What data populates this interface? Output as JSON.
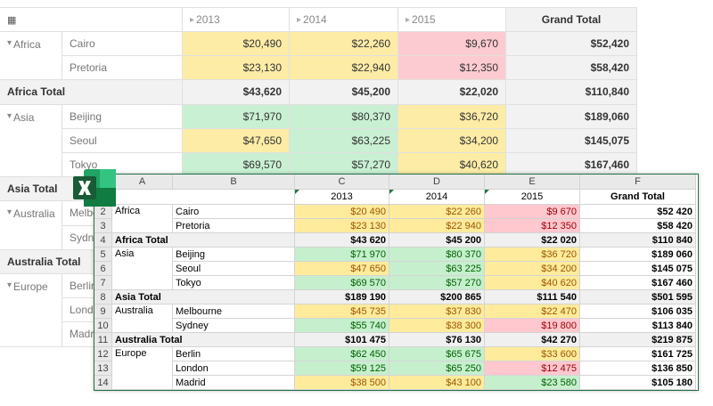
{
  "pivot": {
    "columns": [
      "2013",
      "2014",
      "2015",
      "Grand Total"
    ],
    "palette": {
      "y": [
        "#fdeca6",
        "#333333"
      ],
      "g": [
        "#c9f0d3",
        "#333333"
      ],
      "r": [
        "#fccbd1",
        "#333333"
      ]
    },
    "rows": [
      {
        "group": "Africa",
        "span": 2,
        "label": "Cairo",
        "values": [
          "$20,490",
          "$22,260",
          "$9,670",
          "$52,420"
        ],
        "fills": [
          "y",
          "y",
          "r"
        ]
      },
      {
        "label": "Pretoria",
        "values": [
          "$23,130",
          "$22,940",
          "$12,350",
          "$58,420"
        ],
        "fills": [
          "y",
          "y",
          "r"
        ]
      },
      {
        "total": "Africa Total",
        "values": [
          "$43,620",
          "$45,200",
          "$22,020",
          "$110,840"
        ]
      },
      {
        "group": "Asia",
        "span": 3,
        "label": "Beijing",
        "values": [
          "$71,970",
          "$80,370",
          "$36,720",
          "$189,060"
        ],
        "fills": [
          "g",
          "g",
          "y"
        ]
      },
      {
        "label": "Seoul",
        "values": [
          "$47,650",
          "$63,225",
          "$34,200",
          "$145,075"
        ],
        "fills": [
          "y",
          "g",
          "y"
        ]
      },
      {
        "label": "Tokyo",
        "values": [
          "$69,570",
          "$57,270",
          "$40,620",
          "$167,460"
        ],
        "fills": [
          "g",
          "g",
          "y"
        ]
      },
      {
        "total": "Asia Total"
      },
      {
        "group": "Australia",
        "span": 2,
        "label": "Melbourne"
      },
      {
        "label": "Sydney"
      },
      {
        "total": "Australia Total"
      },
      {
        "group": "Europe",
        "span": 3,
        "label": "Berlin"
      },
      {
        "label": "London"
      },
      {
        "label": "Madrid"
      }
    ]
  },
  "sheet": {
    "letters": [
      "A",
      "B",
      "C",
      "D",
      "E",
      "F"
    ],
    "palette": {
      "y": [
        "#ffeb9c",
        "#9c5700"
      ],
      "g": [
        "#c6efce",
        "#006100"
      ],
      "r": [
        "#ffc7ce",
        "#9c0006"
      ]
    },
    "header": {
      "n": "1",
      "years": [
        "2013",
        "2014",
        "2015"
      ],
      "total": "Grand Total"
    },
    "rows": [
      {
        "n": "2",
        "group": "Africa",
        "span": 2,
        "label": "Cairo",
        "values": [
          "$20 490",
          "$22 260",
          "$9 670",
          "$52 420"
        ],
        "fills": [
          "y",
          "y",
          "r"
        ]
      },
      {
        "n": "3",
        "label": "Pretoria",
        "values": [
          "$23 130",
          "$22 940",
          "$12 350",
          "$58 420"
        ],
        "fills": [
          "y",
          "y",
          "r"
        ]
      },
      {
        "n": "4",
        "total": "Africa Total",
        "values": [
          "$43 620",
          "$45 200",
          "$22 020",
          "$110 840"
        ]
      },
      {
        "n": "5",
        "group": "Asia",
        "span": 3,
        "label": "Beijing",
        "values": [
          "$71 970",
          "$80 370",
          "$36 720",
          "$189 060"
        ],
        "fills": [
          "g",
          "g",
          "y"
        ]
      },
      {
        "n": "6",
        "label": "Seoul",
        "values": [
          "$47 650",
          "$63 225",
          "$34 200",
          "$145 075"
        ],
        "fills": [
          "y",
          "g",
          "y"
        ]
      },
      {
        "n": "7",
        "label": "Tokyo",
        "values": [
          "$69 570",
          "$57 270",
          "$40 620",
          "$167 460"
        ],
        "fills": [
          "g",
          "g",
          "y"
        ]
      },
      {
        "n": "8",
        "total": "Asia Total",
        "values": [
          "$189 190",
          "$200 865",
          "$111 540",
          "$501 595"
        ]
      },
      {
        "n": "9",
        "group": "Australia",
        "span": 2,
        "label": "Melbourne",
        "values": [
          "$45 735",
          "$37 830",
          "$22 470",
          "$106 035"
        ],
        "fills": [
          "y",
          "y",
          "y"
        ]
      },
      {
        "n": "10",
        "label": "Sydney",
        "values": [
          "$55 740",
          "$38 300",
          "$19 800",
          "$113 840"
        ],
        "fills": [
          "g",
          "y",
          "r"
        ]
      },
      {
        "n": "11",
        "total": "Australia Total",
        "values": [
          "$101 475",
          "$76 130",
          "$42 270",
          "$219 875"
        ]
      },
      {
        "n": "12",
        "group": "Europe",
        "span": 3,
        "label": "Berlin",
        "values": [
          "$62 450",
          "$65 675",
          "$33 600",
          "$161 725"
        ],
        "fills": [
          "g",
          "g",
          "y"
        ]
      },
      {
        "n": "13",
        "label": "London",
        "values": [
          "$59 125",
          "$65 250",
          "$12 475",
          "$136 850"
        ],
        "fills": [
          "g",
          "g",
          "r"
        ]
      },
      {
        "n": "14",
        "label": "Madrid",
        "values": [
          "$38 500",
          "$43 100",
          "$23 580",
          "$105 180"
        ],
        "fills": [
          "y",
          "y",
          "g"
        ]
      }
    ]
  }
}
